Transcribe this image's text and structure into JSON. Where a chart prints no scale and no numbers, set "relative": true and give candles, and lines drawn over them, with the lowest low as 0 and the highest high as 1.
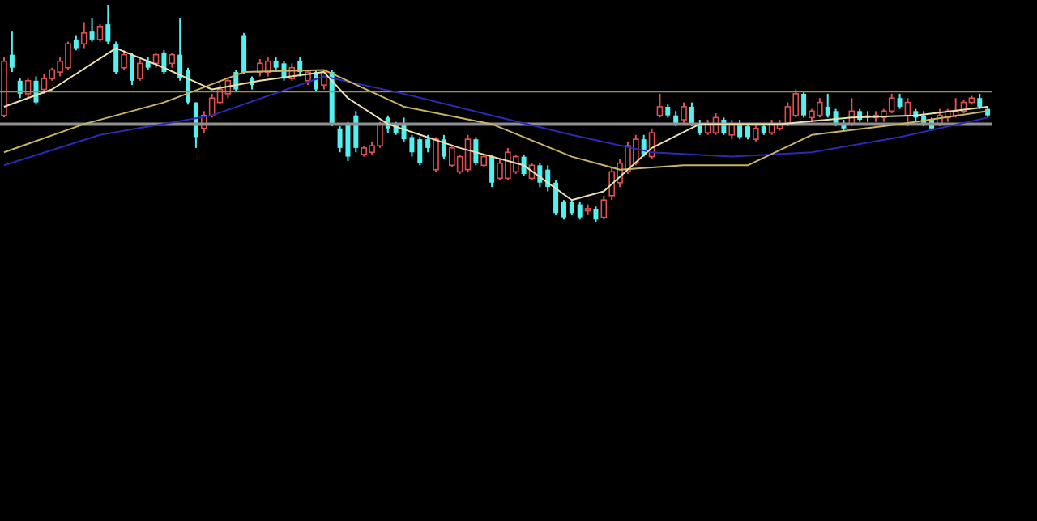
{
  "chart_data": {
    "type": "candlestick",
    "relative": true,
    "categories": [
      null,
      null,
      null,
      null,
      null,
      null,
      null,
      null,
      null,
      null,
      null,
      null,
      null,
      null,
      null,
      null,
      null,
      null,
      null,
      null,
      null,
      null,
      null,
      null,
      null,
      null,
      null,
      null,
      null,
      null,
      null,
      null,
      null,
      null,
      null,
      null,
      null,
      null,
      null,
      null,
      null,
      null,
      null,
      null,
      null,
      null,
      null,
      null,
      null,
      null,
      null,
      null,
      null,
      null,
      null,
      null,
      null,
      null,
      null,
      null,
      null,
      null,
      null,
      null,
      null,
      null,
      null,
      null,
      null,
      null,
      null,
      null,
      null,
      null,
      null,
      null,
      null,
      null,
      null,
      null,
      null,
      null,
      null,
      null,
      null,
      null,
      null,
      null,
      null,
      null,
      null,
      null,
      null,
      null,
      null,
      null,
      null,
      null,
      null,
      null,
      null,
      null,
      null,
      null,
      null,
      null,
      null,
      null,
      null,
      null,
      null,
      null,
      null,
      null,
      null,
      null,
      null,
      null,
      null,
      null,
      null,
      null,
      null,
      null
    ],
    "ohlc": [
      [
        0.49,
        0.76,
        0.48,
        0.74
      ],
      [
        0.77,
        0.88,
        0.69,
        0.71
      ],
      [
        0.65,
        0.66,
        0.57,
        0.59
      ],
      [
        0.59,
        0.66,
        0.57,
        0.65
      ],
      [
        0.65,
        0.67,
        0.54,
        0.55
      ],
      [
        0.61,
        0.68,
        0.59,
        0.66
      ],
      [
        0.66,
        0.71,
        0.65,
        0.7
      ],
      [
        0.69,
        0.76,
        0.67,
        0.74
      ],
      [
        0.71,
        0.83,
        0.7,
        0.82
      ],
      [
        0.84,
        0.86,
        0.79,
        0.8
      ],
      [
        0.82,
        0.92,
        0.8,
        0.87
      ],
      [
        0.88,
        0.94,
        0.83,
        0.84
      ],
      [
        0.84,
        0.91,
        0.83,
        0.9
      ],
      [
        0.91,
        1,
        0.82,
        0.83
      ],
      [
        0.82,
        0.83,
        0.68,
        0.69
      ],
      [
        0.71,
        0.79,
        0.7,
        0.77
      ],
      [
        0.77,
        0.78,
        0.63,
        0.65
      ],
      [
        0.66,
        0.75,
        0.65,
        0.73
      ],
      [
        0.74,
        0.76,
        0.7,
        0.71
      ],
      [
        0.73,
        0.78,
        0.71,
        0.77
      ],
      [
        0.78,
        0.79,
        0.68,
        0.69
      ],
      [
        0.73,
        0.78,
        0.71,
        0.77
      ],
      [
        0.77,
        0.94,
        0.65,
        0.66
      ],
      [
        0.7,
        0.71,
        0.54,
        0.55
      ],
      [
        0.55,
        0.55,
        0.34,
        0.39
      ],
      [
        0.43,
        0.51,
        0.41,
        0.49
      ],
      [
        0.49,
        0.59,
        0.48,
        0.57
      ],
      [
        0.55,
        0.63,
        0.54,
        0.61
      ],
      [
        0.59,
        0.66,
        0.57,
        0.65
      ],
      [
        0.69,
        0.7,
        0.6,
        0.61
      ],
      [
        0.86,
        0.87,
        0.68,
        0.69
      ],
      [
        0.66,
        0.67,
        0.61,
        0.63
      ],
      [
        0.69,
        0.75,
        0.67,
        0.73
      ],
      [
        0.69,
        0.76,
        0.67,
        0.74
      ],
      [
        0.74,
        0.76,
        0.7,
        0.71
      ],
      [
        0.73,
        0.74,
        0.65,
        0.66
      ],
      [
        0.66,
        0.73,
        0.65,
        0.71
      ],
      [
        0.74,
        0.76,
        0.67,
        0.69
      ],
      [
        0.65,
        0.7,
        0.63,
        0.69
      ],
      [
        0.69,
        0.7,
        0.6,
        0.61
      ],
      [
        0.63,
        0.7,
        0.61,
        0.69
      ],
      [
        0.69,
        0.7,
        0.44,
        0.45
      ],
      [
        0.43,
        0.44,
        0.32,
        0.34
      ],
      [
        0.45,
        0.46,
        0.28,
        0.3
      ],
      [
        0.49,
        0.51,
        0.32,
        0.34
      ],
      [
        0.31,
        0.35,
        0.3,
        0.34
      ],
      [
        0.32,
        0.37,
        0.31,
        0.35
      ],
      [
        0.35,
        0.46,
        0.34,
        0.45
      ],
      [
        0.48,
        0.49,
        0.41,
        0.43
      ],
      [
        0.45,
        0.46,
        0.4,
        0.41
      ],
      [
        0.45,
        0.48,
        0.37,
        0.38
      ],
      [
        0.39,
        0.4,
        0.3,
        0.32
      ],
      [
        0.38,
        0.39,
        0.26,
        0.27
      ],
      [
        0.38,
        0.4,
        0.32,
        0.34
      ],
      [
        0.24,
        0.39,
        0.23,
        0.38
      ],
      [
        0.38,
        0.4,
        0.29,
        0.3
      ],
      [
        0.26,
        0.35,
        0.25,
        0.34
      ],
      [
        0.23,
        0.31,
        0.22,
        0.3
      ],
      [
        0.24,
        0.4,
        0.23,
        0.38
      ],
      [
        0.38,
        0.39,
        0.26,
        0.27
      ],
      [
        0.26,
        0.31,
        0.25,
        0.3
      ],
      [
        0.3,
        0.31,
        0.16,
        0.18
      ],
      [
        0.2,
        0.29,
        0.19,
        0.27
      ],
      [
        0.2,
        0.34,
        0.19,
        0.32
      ],
      [
        0.23,
        0.31,
        0.22,
        0.3
      ],
      [
        0.3,
        0.31,
        0.21,
        0.22
      ],
      [
        0.2,
        0.27,
        0.19,
        0.26
      ],
      [
        0.26,
        0.27,
        0.16,
        0.18
      ],
      [
        0.24,
        0.26,
        0.14,
        0.16
      ],
      [
        0.18,
        0.19,
        0.03,
        0.04
      ],
      [
        0.09,
        0.1,
        0.01,
        0.02
      ],
      [
        0.09,
        0.1,
        0.03,
        0.04
      ],
      [
        0.08,
        0.09,
        0.01,
        0.02
      ],
      [
        0.05,
        0.08,
        0.03,
        0.06
      ],
      [
        0.06,
        0.07,
        0,
        0.01
      ],
      [
        0.02,
        0.12,
        0.01,
        0.1
      ],
      [
        0.12,
        0.25,
        0.1,
        0.23
      ],
      [
        0.18,
        0.29,
        0.16,
        0.27
      ],
      [
        0.23,
        0.37,
        0.22,
        0.35
      ],
      [
        0.27,
        0.4,
        0.26,
        0.38
      ],
      [
        0.38,
        0.4,
        0.3,
        0.31
      ],
      [
        0.3,
        0.43,
        0.29,
        0.41
      ],
      [
        0.49,
        0.59,
        0.48,
        0.53
      ],
      [
        0.53,
        0.54,
        0.48,
        0.49
      ],
      [
        0.49,
        0.51,
        0.44,
        0.45
      ],
      [
        0.47,
        0.55,
        0.45,
        0.53
      ],
      [
        0.53,
        0.55,
        0.44,
        0.45
      ],
      [
        0.45,
        0.47,
        0.4,
        0.41
      ],
      [
        0.41,
        0.47,
        0.4,
        0.45
      ],
      [
        0.41,
        0.5,
        0.4,
        0.48
      ],
      [
        0.47,
        0.48,
        0.4,
        0.41
      ],
      [
        0.4,
        0.47,
        0.38,
        0.45
      ],
      [
        0.45,
        0.47,
        0.38,
        0.39
      ],
      [
        0.44,
        0.45,
        0.38,
        0.39
      ],
      [
        0.38,
        0.45,
        0.37,
        0.43
      ],
      [
        0.44,
        0.45,
        0.4,
        0.41
      ],
      [
        0.41,
        0.47,
        0.4,
        0.45
      ],
      [
        0.43,
        0.47,
        0.42,
        0.45
      ],
      [
        0.45,
        0.55,
        0.44,
        0.53
      ],
      [
        0.49,
        0.61,
        0.48,
        0.59
      ],
      [
        0.59,
        0.6,
        0.48,
        0.49
      ],
      [
        0.48,
        0.52,
        0.46,
        0.51
      ],
      [
        0.49,
        0.57,
        0.48,
        0.55
      ],
      [
        0.53,
        0.59,
        0.48,
        0.49
      ],
      [
        0.51,
        0.52,
        0.44,
        0.45
      ],
      [
        0.45,
        0.47,
        0.42,
        0.43
      ],
      [
        0.45,
        0.57,
        0.44,
        0.51
      ],
      [
        0.51,
        0.52,
        0.46,
        0.47
      ],
      [
        0.49,
        0.51,
        0.46,
        0.48
      ],
      [
        0.48,
        0.51,
        0.46,
        0.49
      ],
      [
        0.48,
        0.52,
        0.46,
        0.51
      ],
      [
        0.51,
        0.59,
        0.5,
        0.57
      ],
      [
        0.57,
        0.59,
        0.52,
        0.53
      ],
      [
        0.49,
        0.57,
        0.44,
        0.55
      ],
      [
        0.51,
        0.52,
        0.46,
        0.48
      ],
      [
        0.49,
        0.51,
        0.44,
        0.45
      ],
      [
        0.47,
        0.48,
        0.42,
        0.43
      ],
      [
        0.45,
        0.52,
        0.44,
        0.49
      ],
      [
        0.48,
        0.52,
        0.46,
        0.51
      ],
      [
        0.49,
        0.57,
        0.48,
        0.51
      ],
      [
        0.51,
        0.56,
        0.5,
        0.55
      ],
      [
        0.55,
        0.58,
        0.54,
        0.57
      ],
      [
        0.57,
        0.59,
        0.52,
        0.53
      ],
      [
        0.52,
        0.53,
        0.48,
        0.49
      ]
    ],
    "series": [
      {
        "type": "line",
        "color": "#2a2ab4",
        "values": [
          0.26,
          null,
          null,
          null,
          null,
          null,
          null,
          null,
          null,
          null,
          null,
          null,
          0.4,
          null,
          null,
          null,
          null,
          null,
          null,
          null,
          null,
          null,
          null,
          null,
          null,
          null,
          0.49,
          null,
          null,
          null,
          null,
          null,
          null,
          null,
          null,
          null,
          null,
          null,
          null,
          null,
          0.67,
          null,
          null,
          null,
          null,
          null,
          null,
          null,
          null,
          null,
          0.59,
          null,
          null,
          null,
          null,
          null,
          null,
          null,
          null,
          null,
          null,
          0.49,
          null,
          null,
          null,
          null,
          null,
          null,
          null,
          null,
          null,
          0.4,
          null,
          null,
          null,
          null,
          null,
          null,
          null,
          null,
          null,
          0.32,
          null,
          null,
          null,
          null,
          null,
          null,
          null,
          null,
          null,
          0.3,
          null,
          null,
          null,
          null,
          null,
          null,
          null,
          null,
          null,
          0.32,
          null,
          null,
          null,
          null,
          null,
          null,
          null,
          null,
          null,
          null,
          0.39,
          null,
          null,
          null,
          null,
          null,
          null,
          null,
          null,
          null,
          null,
          0.48
        ]
      },
      {
        "type": "line",
        "color": "#c8b464",
        "values": [
          0.32,
          null,
          null,
          null,
          null,
          null,
          null,
          null,
          null,
          null,
          0.45,
          null,
          null,
          null,
          null,
          null,
          null,
          null,
          null,
          null,
          0.55,
          null,
          null,
          null,
          null,
          null,
          null,
          null,
          null,
          null,
          0.69,
          null,
          null,
          null,
          null,
          null,
          null,
          null,
          null,
          null,
          0.7,
          null,
          null,
          null,
          null,
          null,
          null,
          null,
          null,
          null,
          0.53,
          null,
          null,
          null,
          null,
          null,
          null,
          null,
          null,
          null,
          null,
          0.45,
          null,
          null,
          null,
          null,
          null,
          null,
          null,
          null,
          null,
          0.3,
          null,
          null,
          null,
          null,
          null,
          0.24,
          null,
          null,
          null,
          null,
          null,
          null,
          null,
          0.26,
          null,
          null,
          null,
          null,
          null,
          null,
          null,
          0.26,
          null,
          null,
          null,
          null,
          null,
          null,
          null,
          0.4,
          null,
          null,
          null,
          null,
          null,
          null,
          null,
          null,
          null,
          null,
          0.45,
          null,
          null,
          null,
          null,
          null,
          null,
          null,
          null,
          null,
          null,
          0.51
        ]
      },
      {
        "type": "line",
        "color": "#e8e0b0",
        "values": [
          0.53,
          null,
          null,
          null,
          null,
          null,
          0.61,
          null,
          null,
          null,
          null,
          null,
          null,
          null,
          0.8,
          null,
          null,
          null,
          null,
          null,
          0.71,
          null,
          null,
          null,
          null,
          null,
          0.61,
          null,
          null,
          null,
          null,
          null,
          0.65,
          null,
          null,
          null,
          null,
          null,
          null,
          null,
          0.69,
          null,
          null,
          0.57,
          null,
          null,
          null,
          null,
          0.45,
          null,
          null,
          null,
          null,
          null,
          null,
          null,
          null,
          0.34,
          null,
          null,
          null,
          null,
          null,
          null,
          null,
          0.26,
          null,
          null,
          null,
          null,
          null,
          0.1,
          null,
          null,
          null,
          0.14,
          null,
          null,
          null,
          null,
          null,
          0.34,
          null,
          null,
          null,
          null,
          null,
          0.45,
          null,
          null,
          null,
          null,
          null,
          null,
          null,
          null,
          null,
          0.45,
          null,
          null,
          null,
          null,
          null,
          null,
          null,
          null,
          0.48,
          null,
          null,
          null,
          null,
          null,
          null,
          null,
          0.49,
          null,
          null,
          null,
          null,
          null,
          null,
          null,
          null,
          0.53
        ]
      }
    ],
    "ref_lines": [
      {
        "axis": "y",
        "value": 0.6,
        "color": "#a09048"
      },
      {
        "axis": "y",
        "value": 0.45,
        "color": "#909090"
      }
    ]
  }
}
